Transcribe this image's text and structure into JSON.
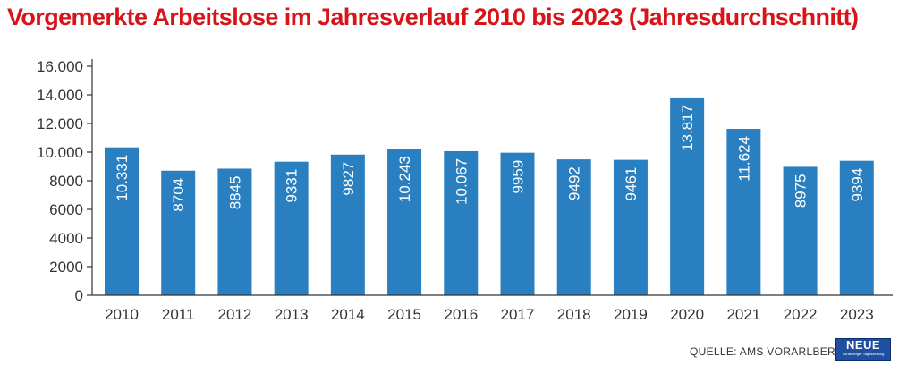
{
  "colors": {
    "title": "#d7141a",
    "bar": "#2a7fc1",
    "axis": "#333333"
  },
  "footer": {
    "source": "QUELLE: AMS VORARLBERG"
  },
  "logo": {
    "word": "NEUE",
    "subline": "Vorarlberger Tageszeitung"
  },
  "chart_data": {
    "type": "bar",
    "title": "Vorgemerkte Arbeitslose im Jahresverlauf 2010 bis 2023 (Jahresdurchschnitt)",
    "xlabel": "",
    "ylabel": "",
    "ylim": [
      0,
      16000
    ],
    "grid": false,
    "yticks": [
      0,
      2000,
      4000,
      6000,
      8000,
      10000,
      12000,
      14000,
      16000
    ],
    "ytick_labels": [
      "0",
      "2000",
      "4000",
      "6000",
      "8000",
      "10.000",
      "12.000",
      "14.000",
      "16.000"
    ],
    "categories": [
      "2010",
      "2011",
      "2012",
      "2013",
      "2014",
      "2015",
      "2016",
      "2017",
      "2018",
      "2019",
      "2020",
      "2021",
      "2022",
      "2023"
    ],
    "values": [
      10331,
      8704,
      8845,
      9331,
      9827,
      10243,
      10067,
      9959,
      9492,
      9461,
      13817,
      11624,
      8975,
      9394
    ],
    "value_labels": [
      "10.331",
      "8704",
      "8845",
      "9331",
      "9827",
      "10.243",
      "10.067",
      "9959",
      "9492",
      "9461",
      "13.817",
      "11.624",
      "8975",
      "9394"
    ]
  }
}
